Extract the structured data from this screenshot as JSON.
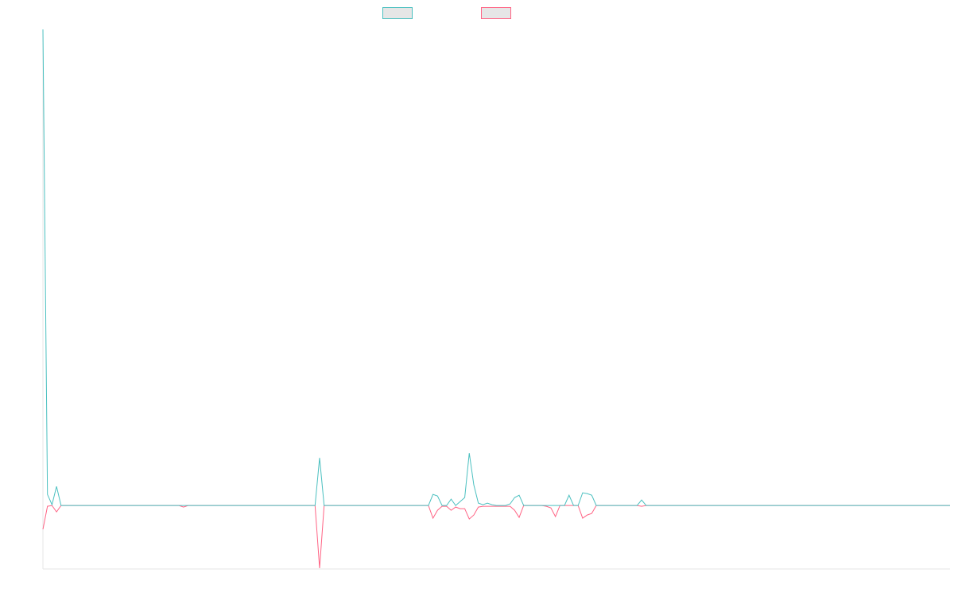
{
  "chart_data": {
    "type": "line",
    "title": "",
    "xlabel": "",
    "ylabel": "",
    "grid": false,
    "legend_position": "top-center",
    "x_count": 201,
    "ylim": [
      -8,
      60
    ],
    "baseline": 0,
    "series": [
      {
        "color": "#4bc0c0",
        "legend_fill": "#e6e6e6",
        "points": [
          [
            0,
            60
          ],
          [
            1,
            1.4
          ],
          [
            2,
            0.1
          ],
          [
            3,
            2.4
          ],
          [
            4,
            0
          ],
          [
            5,
            0
          ],
          [
            30,
            0
          ],
          [
            60,
            0
          ],
          [
            61,
            6.0
          ],
          [
            62,
            0
          ],
          [
            85,
            0
          ],
          [
            86,
            1.4
          ],
          [
            87,
            1.2
          ],
          [
            88,
            0
          ],
          [
            89,
            0
          ],
          [
            90,
            0.8
          ],
          [
            91,
            0
          ],
          [
            92,
            0.5
          ],
          [
            93,
            1.0
          ],
          [
            94,
            6.6
          ],
          [
            95,
            2.6
          ],
          [
            96,
            0.3
          ],
          [
            97,
            0.1
          ],
          [
            98,
            0.3
          ],
          [
            99,
            0.1
          ],
          [
            100,
            0
          ],
          [
            101,
            0
          ],
          [
            102,
            0
          ],
          [
            103,
            0.2
          ],
          [
            104,
            1.0
          ],
          [
            105,
            1.3
          ],
          [
            106,
            0
          ],
          [
            110,
            0
          ],
          [
            111,
            0
          ],
          [
            112,
            0
          ],
          [
            113,
            0
          ],
          [
            114,
            0
          ],
          [
            115,
            0
          ],
          [
            116,
            1.3
          ],
          [
            117,
            0
          ],
          [
            118,
            0
          ],
          [
            119,
            1.6
          ],
          [
            120,
            1.5
          ],
          [
            121,
            1.3
          ],
          [
            122,
            0
          ],
          [
            131,
            0
          ],
          [
            132,
            0.7
          ],
          [
            133,
            0
          ],
          [
            200,
            0
          ]
        ]
      },
      {
        "color": "#ff6384",
        "legend_fill": "#e6e6e6",
        "points": [
          [
            0,
            -3.0
          ],
          [
            1,
            -0.1
          ],
          [
            2,
            0
          ],
          [
            3,
            -0.8
          ],
          [
            4,
            0
          ],
          [
            5,
            0
          ],
          [
            30,
            0
          ],
          [
            31,
            -0.2
          ],
          [
            32,
            0
          ],
          [
            60,
            0
          ],
          [
            61,
            -7.9
          ],
          [
            62,
            0
          ],
          [
            85,
            0
          ],
          [
            86,
            -1.6
          ],
          [
            87,
            -0.6
          ],
          [
            88,
            -0.1
          ],
          [
            89,
            -0.1
          ],
          [
            90,
            -0.6
          ],
          [
            91,
            -0.2
          ],
          [
            92,
            -0.4
          ],
          [
            93,
            -0.4
          ],
          [
            94,
            -1.7
          ],
          [
            95,
            -1.2
          ],
          [
            96,
            -0.2
          ],
          [
            97,
            -0.1
          ],
          [
            98,
            -0.1
          ],
          [
            99,
            -0.1
          ],
          [
            100,
            -0.1
          ],
          [
            101,
            -0.1
          ],
          [
            102,
            -0.1
          ],
          [
            103,
            -0.1
          ],
          [
            104,
            -0.6
          ],
          [
            105,
            -1.5
          ],
          [
            106,
            0
          ],
          [
            110,
            0
          ],
          [
            111,
            -0.1
          ],
          [
            112,
            -0.3
          ],
          [
            113,
            -1.4
          ],
          [
            114,
            0
          ],
          [
            115,
            0
          ],
          [
            116,
            0
          ],
          [
            117,
            0
          ],
          [
            118,
            0
          ],
          [
            119,
            -1.6
          ],
          [
            120,
            -1.2
          ],
          [
            121,
            -1.0
          ],
          [
            122,
            0
          ],
          [
            131,
            0
          ],
          [
            132,
            -0.1
          ],
          [
            133,
            0
          ],
          [
            200,
            0
          ]
        ]
      }
    ]
  }
}
